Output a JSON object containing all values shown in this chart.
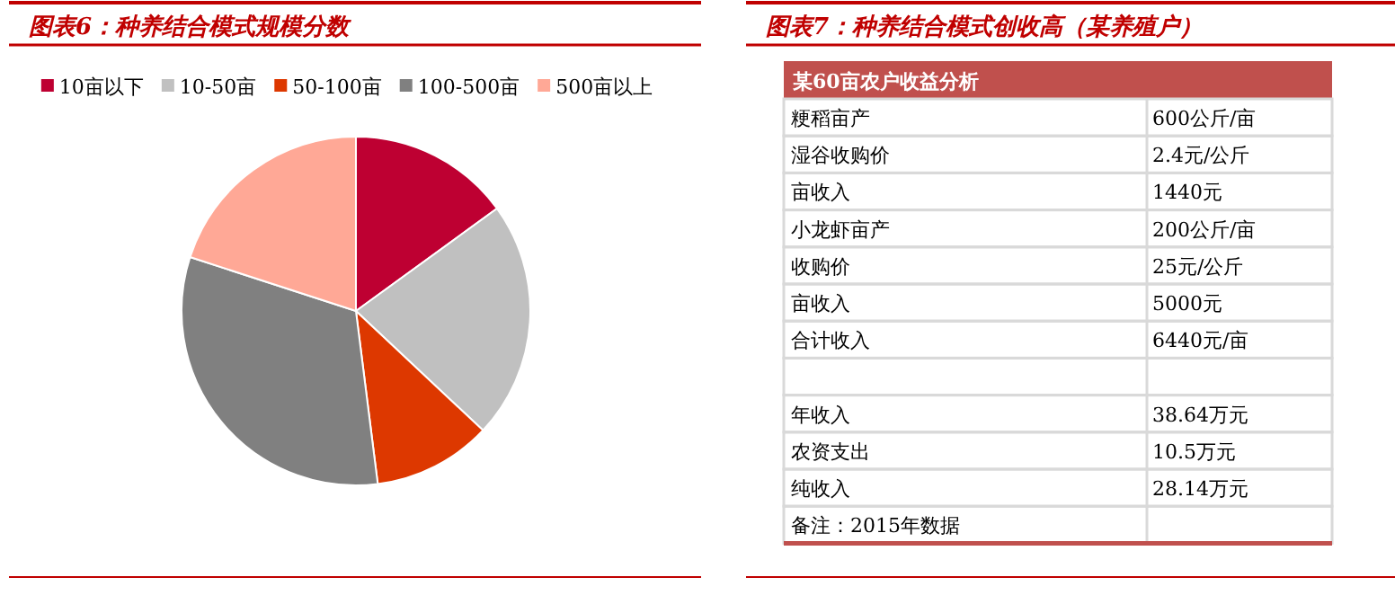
{
  "chart_data": [
    {
      "type": "pie",
      "title": "图表6：种养结合模式规模分数",
      "categories": [
        "10亩以下",
        "10-50亩",
        "50-100亩",
        "100-500亩",
        "500亩以上"
      ],
      "values": [
        15,
        22,
        11,
        32,
        20
      ],
      "colors": [
        "#be0032",
        "#c0c0c0",
        "#dd3800",
        "#808080",
        "#ffa896"
      ],
      "legend": "top"
    },
    {
      "type": "other",
      "title": "图表7：种养结合模式创收高（某养殖户）",
      "subtitle": "某60亩农户收益分析",
      "annotations": [
        "粳稻亩产",
        "600公斤/亩",
        "湿谷收购价",
        "2.4元/公斤",
        "亩收入",
        "1440元",
        "小龙虾亩产",
        "200公斤/亩",
        "收购价",
        "25元/公斤",
        "亩收入",
        "5000元",
        "合计收入",
        "6440元/亩",
        null,
        null,
        "年收入",
        "38.64万元",
        "农资支出",
        "10.5万元",
        "纯收入",
        "28.14万元",
        "备注：2015年数据",
        null
      ]
    }
  ]
}
